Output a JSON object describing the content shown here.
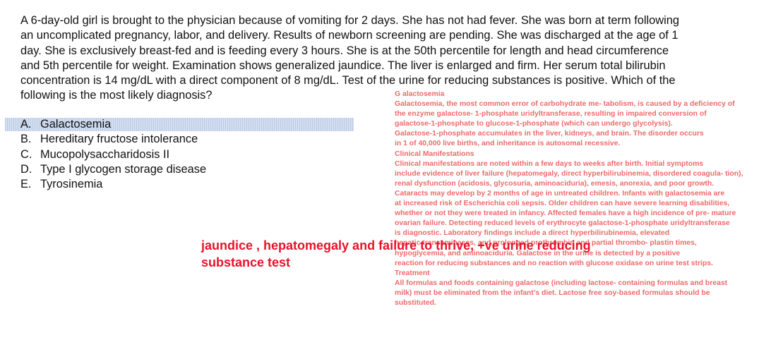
{
  "question": {
    "lines": [
      "A 6-day-old girl is brought to the physician because of vomiting for 2 days.  She has not had fever.  She was born at term following",
      "an uncomplicated pregnancy, labor, and delivery.  Results of newborn screening are pending.  She was discharged at the age of 1",
      "day.  She is exclusively breast-fed and is feeding every 3 hours.  She is at the 50th percentile for length and head circumference",
      "and 5th percentile for weight.  Examination shows generalized jaundice.  The liver is enlarged and firm.  Her serum total bilirubin",
      "concentration is 14 mg/dL with a direct component of 8 mg/dL.  Test of the urine for reducing substances is positive.  Which of the",
      "following is the most likely diagnosis?"
    ]
  },
  "options": [
    {
      "letter": "A.",
      "text": "Galactosemia",
      "selected": true
    },
    {
      "letter": "B.",
      "text": "Hereditary fructose intolerance",
      "selected": false
    },
    {
      "letter": "C.",
      "text": "Mucopolysaccharidosis II",
      "selected": false
    },
    {
      "letter": "D.",
      "text": "Type I glycogen storage disease",
      "selected": false
    },
    {
      "letter": "E.",
      "text": "Tyrosinemia",
      "selected": false
    }
  ],
  "explanation": {
    "lines": [
      "G alactosemia",
      "Galactosemia, the most common error of carbohydrate me- tabolism, is caused by a deficiency of",
      "the enzyme galactose- 1-phosphate uridyltransferase, resulting in impaired conversion of",
      "galactose-1-phosphate to glucose-1-phosphate (which can undergo glycolysis).",
      "Galactose-1-phosphate accumulates in the liver, kidneys, and brain. The disorder occurs",
      "in 1 of 40,000 live births, and inheritance is autosomal recessive.",
      "Clinical Manifestations",
      "Clinical manifestations are noted within a few days to weeks after birth. Initial symptoms",
      "include evidence of liver failure (hepatomegaly, direct hyperbilirubinemia, disordered coagula- tion),",
      "renal dysfunction (acidosis, glycosuria, aminoaciduria), emesis, anorexia, and poor growth.",
      "Cataracts may develop by 2 months of age in untreated children. Infants with galactosemia are",
      "at increased risk of Escherichia coli sepsis. Older children can have severe learning disabilities,",
      "whether or not they were treated in infancy. Affected females have a high incidence of pre- mature",
      " ovarian failure. Detecting reduced levels of erythrocyte galactose-1-phosphate uridyltransferase",
      "is diagnostic. Laboratory findings include a direct hyperbilirubinemia, elevated",
      "hepatic transaminases, and prolonged prothrombin and partial thrombo- plastin times,",
      " hypoglycemia, and aminoaciduria. Galactose in the urine is detected by a positive",
      "reaction for reducing substances and no reaction with glucose oxidase on urine test strips.",
      "Treatment",
      "All formulas and foods containing galactose (including lactose- containing formulas and breast",
      "milk) must be eliminated from the infant’s diet. Lactose free soy-based formulas should be",
      "substituted."
    ]
  },
  "annotation": {
    "lines": [
      "jaundice , hepatomegaly and failure to thrive, +ve urine reducing",
      "substance test"
    ]
  },
  "colors": {
    "question_text": "#111111",
    "explanation_text": "#ef6a6a",
    "annotation_text": "#e8112b",
    "selected_highlight": "#d3dff1"
  }
}
